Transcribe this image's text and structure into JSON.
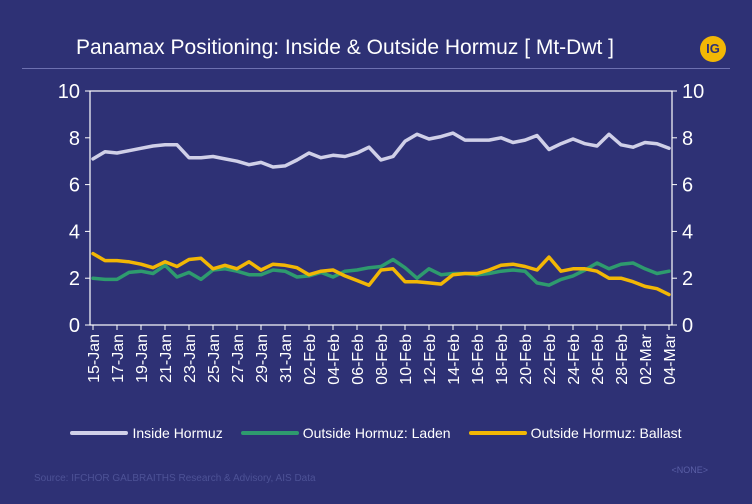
{
  "header": {
    "title": "Panamax Positioning: Inside & Outside Hormuz [ Mt-Dwt ]",
    "logo_text": "IG"
  },
  "chart_data": {
    "type": "line",
    "title": "Panamax Positioning: Inside & Outside Hormuz [ Mt-Dwt ]",
    "xlabel": "",
    "ylabel": "",
    "ylim": [
      0,
      10
    ],
    "yticks": [
      0,
      2,
      4,
      6,
      8,
      10
    ],
    "grid": false,
    "legend_position": "bottom",
    "x": [
      "15-Jan",
      "16-Jan",
      "17-Jan",
      "18-Jan",
      "19-Jan",
      "20-Jan",
      "21-Jan",
      "22-Jan",
      "23-Jan",
      "24-Jan",
      "25-Jan",
      "26-Jan",
      "27-Jan",
      "28-Jan",
      "29-Jan",
      "30-Jan",
      "31-Jan",
      "01-Feb",
      "02-Feb",
      "03-Feb",
      "04-Feb",
      "05-Feb",
      "06-Feb",
      "07-Feb",
      "08-Feb",
      "09-Feb",
      "10-Feb",
      "11-Feb",
      "12-Feb",
      "13-Feb",
      "14-Feb",
      "15-Feb",
      "16-Feb",
      "17-Feb",
      "18-Feb",
      "19-Feb",
      "20-Feb",
      "21-Feb",
      "22-Feb",
      "23-Feb",
      "24-Feb",
      "25-Feb",
      "26-Feb",
      "27-Feb",
      "28-Feb",
      "01-Mar",
      "02-Mar",
      "03-Mar",
      "04-Mar"
    ],
    "xtick_labels": [
      "15-Jan",
      "17-Jan",
      "19-Jan",
      "21-Jan",
      "23-Jan",
      "25-Jan",
      "27-Jan",
      "29-Jan",
      "31-Jan",
      "02-Feb",
      "04-Feb",
      "06-Feb",
      "08-Feb",
      "10-Feb",
      "12-Feb",
      "14-Feb",
      "16-Feb",
      "18-Feb",
      "20-Feb",
      "22-Feb",
      "24-Feb",
      "26-Feb",
      "28-Feb",
      "02-Mar",
      "04-Mar"
    ],
    "series": [
      {
        "name": "Inside Hormuz",
        "color": "#d0d0e8",
        "values": [
          7.1,
          7.4,
          7.35,
          7.45,
          7.55,
          7.65,
          7.7,
          7.7,
          7.15,
          7.15,
          7.2,
          7.1,
          7.0,
          6.85,
          6.95,
          6.75,
          6.8,
          7.05,
          7.35,
          7.15,
          7.25,
          7.2,
          7.35,
          7.6,
          7.05,
          7.2,
          7.85,
          8.15,
          7.95,
          8.05,
          8.2,
          7.9,
          7.9,
          7.9,
          8.0,
          7.8,
          7.9,
          8.1,
          7.5,
          7.75,
          7.95,
          7.75,
          7.65,
          8.15,
          7.7,
          7.6,
          7.8,
          7.75,
          7.55
        ]
      },
      {
        "name": "Outside Hormuz: Laden",
        "color": "#2e9b6e",
        "values": [
          2.0,
          1.95,
          1.95,
          2.25,
          2.3,
          2.2,
          2.55,
          2.05,
          2.25,
          1.95,
          2.35,
          2.4,
          2.3,
          2.15,
          2.15,
          2.35,
          2.3,
          2.05,
          2.1,
          2.25,
          2.05,
          2.3,
          2.35,
          2.45,
          2.5,
          2.8,
          2.45,
          2.0,
          2.4,
          2.15,
          2.2,
          2.2,
          2.15,
          2.2,
          2.3,
          2.35,
          2.3,
          1.8,
          1.7,
          1.95,
          2.1,
          2.35,
          2.65,
          2.4,
          2.6,
          2.65,
          2.4,
          2.2,
          2.3
        ]
      },
      {
        "name": "Outside Hormuz: Ballast",
        "color": "#f2b705",
        "values": [
          3.05,
          2.75,
          2.75,
          2.7,
          2.6,
          2.45,
          2.7,
          2.5,
          2.8,
          2.85,
          2.4,
          2.55,
          2.4,
          2.7,
          2.35,
          2.6,
          2.55,
          2.45,
          2.15,
          2.3,
          2.35,
          2.1,
          1.9,
          1.7,
          2.35,
          2.4,
          1.85,
          1.85,
          1.8,
          1.75,
          2.15,
          2.2,
          2.2,
          2.35,
          2.55,
          2.6,
          2.5,
          2.35,
          2.9,
          2.3,
          2.4,
          2.4,
          2.3,
          2.0,
          2.0,
          1.85,
          1.65,
          1.55,
          1.3
        ]
      }
    ]
  },
  "legend": {
    "items": [
      {
        "label": "Inside Hormuz",
        "color": "#d0d0e8"
      },
      {
        "label": "Outside Hormuz: Laden",
        "color": "#2e9b6e"
      },
      {
        "label": "Outside Hormuz: Ballast",
        "color": "#f2b705"
      }
    ]
  },
  "footer": {
    "source": "Source: IFCHOR GALBRAITHS Research & Advisory, AIS Data",
    "tag": "<NONE>"
  }
}
